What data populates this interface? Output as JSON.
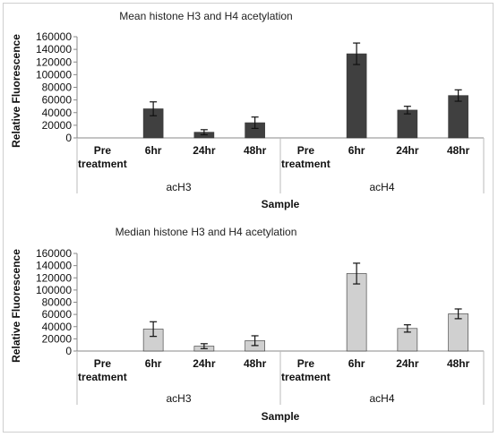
{
  "chart_data": [
    {
      "type": "bar",
      "title": "Mean histone H3 and H4 acetylation",
      "xlabel": "Sample",
      "ylabel": "Relative Fluorescence",
      "ylim": [
        0,
        160000
      ],
      "yticks": [
        "0",
        "20000",
        "40000",
        "60000",
        "80000",
        "100000",
        "120000",
        "140000",
        "160000"
      ],
      "groups": [
        "acH3",
        "acH4"
      ],
      "categories": [
        {
          "line1": "Pre",
          "line2": "treatment"
        },
        {
          "line1": "6hr",
          "line2": ""
        },
        {
          "line1": "24hr",
          "line2": ""
        },
        {
          "line1": "48hr",
          "line2": ""
        }
      ],
      "bar_color": "#404040",
      "series": [
        {
          "group": "acH3",
          "values": [
            0,
            46000,
            9000,
            24000
          ],
          "errors": [
            0,
            11000,
            4000,
            9000
          ]
        },
        {
          "group": "acH4",
          "values": [
            0,
            133000,
            44000,
            67000
          ],
          "errors": [
            0,
            17000,
            6000,
            9000
          ]
        }
      ]
    },
    {
      "type": "bar",
      "title": "Median histone H3 and H4 acetylation",
      "xlabel": "Sample",
      "ylabel": "Relative Fluorescence",
      "ylim": [
        0,
        160000
      ],
      "yticks": [
        "0",
        "20000",
        "40000",
        "60000",
        "80000",
        "100000",
        "120000",
        "140000",
        "160000"
      ],
      "groups": [
        "acH3",
        "acH4"
      ],
      "categories": [
        {
          "line1": "Pre",
          "line2": "treatment"
        },
        {
          "line1": "6hr",
          "line2": ""
        },
        {
          "line1": "24hr",
          "line2": ""
        },
        {
          "line1": "48hr",
          "line2": ""
        }
      ],
      "bar_color": "#d0d0d0",
      "series": [
        {
          "group": "acH3",
          "values": [
            0,
            36000,
            8000,
            17000
          ],
          "errors": [
            0,
            12000,
            4000,
            8000
          ]
        },
        {
          "group": "acH4",
          "values": [
            0,
            127000,
            37000,
            61000
          ],
          "errors": [
            0,
            17000,
            6000,
            8000
          ]
        }
      ]
    }
  ]
}
